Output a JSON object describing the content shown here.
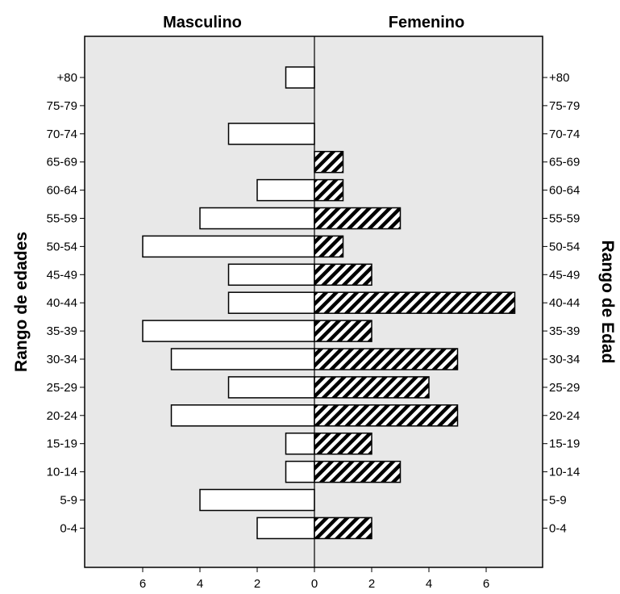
{
  "chart_data": {
    "type": "bar",
    "orientation": "horizontal",
    "layout": "population-pyramid",
    "left_title": "Masculino",
    "right_title": "Femenino",
    "ylabel_left": "Rango de edades",
    "ylabel_right": "Rango de Edad",
    "categories": [
      "+80",
      "75-79",
      "70-74",
      "65-69",
      "60-64",
      "55-59",
      "50-54",
      "45-49",
      "40-44",
      "35-39",
      "30-34",
      "25-29",
      "20-24",
      "15-19",
      "10-14",
      "5-9",
      "0-4"
    ],
    "series": [
      {
        "name": "Masculino",
        "values": [
          1,
          0,
          3,
          0,
          2,
          4,
          6,
          3,
          3,
          6,
          5,
          3,
          5,
          1,
          1,
          4,
          2
        ]
      },
      {
        "name": "Femenino",
        "values": [
          0,
          0,
          0,
          1,
          1,
          3,
          1,
          2,
          7,
          2,
          5,
          4,
          5,
          2,
          3,
          0,
          2
        ]
      }
    ],
    "x_ticks_left": [
      6,
      4,
      2,
      0
    ],
    "x_ticks_right": [
      2,
      4,
      6
    ],
    "xlim": [
      -7.5,
      7.5
    ],
    "grid": false,
    "colors": {
      "background": "#e8e8e8",
      "left_fill": "#ffffff",
      "right_pattern": "diagonal-hatch-black",
      "border": "#000000"
    }
  }
}
